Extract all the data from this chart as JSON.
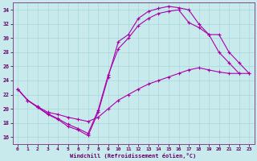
{
  "xlabel": "Windchill (Refroidissement éolien,°C)",
  "bg_color": "#c8eaec",
  "line_color": "#aa00aa",
  "grid_color": "#a8d8dc",
  "spine_color": "#884488",
  "tick_color": "#660066",
  "xlim": [
    -0.5,
    23.5
  ],
  "ylim": [
    15.0,
    35.0
  ],
  "yticks": [
    16,
    18,
    20,
    22,
    24,
    26,
    28,
    30,
    32,
    34
  ],
  "xticks": [
    0,
    1,
    2,
    3,
    4,
    5,
    6,
    7,
    8,
    9,
    10,
    11,
    12,
    13,
    14,
    15,
    16,
    17,
    18,
    19,
    20,
    21,
    22,
    23
  ],
  "curve1_x": [
    0,
    1,
    2,
    3,
    4,
    5,
    6,
    7,
    8,
    9,
    10,
    11,
    12,
    13,
    14,
    15,
    16,
    17,
    18,
    19,
    20,
    21,
    22
  ],
  "curve1_y": [
    22.8,
    21.2,
    20.2,
    19.2,
    18.5,
    17.5,
    17.0,
    16.2,
    19.5,
    24.5,
    29.5,
    30.5,
    32.8,
    33.8,
    34.2,
    34.5,
    34.3,
    34.0,
    32.0,
    30.5,
    28.0,
    26.5,
    25.0
  ],
  "curve2_x": [
    0,
    1,
    2,
    3,
    4,
    5,
    6,
    7,
    8,
    9,
    10,
    11,
    12,
    13,
    14,
    15,
    16,
    17,
    18,
    19,
    20,
    21,
    22,
    23
  ],
  "curve2_y": [
    22.8,
    21.2,
    20.3,
    19.5,
    19.2,
    18.8,
    18.5,
    18.2,
    18.8,
    20.0,
    21.2,
    22.0,
    22.8,
    23.5,
    24.0,
    24.5,
    25.0,
    25.5,
    25.8,
    25.5,
    25.2,
    25.0,
    25.0,
    25.0
  ],
  "curve3_x": [
    0,
    1,
    2,
    3,
    4,
    5,
    6,
    7,
    8,
    9,
    10,
    11,
    12,
    13,
    14,
    15,
    16,
    17,
    18,
    19,
    20,
    21,
    22,
    23
  ],
  "curve3_y": [
    22.8,
    21.2,
    20.2,
    19.3,
    18.6,
    17.8,
    17.2,
    16.5,
    19.8,
    24.8,
    28.5,
    30.0,
    31.8,
    32.8,
    33.5,
    33.8,
    34.0,
    32.2,
    31.5,
    30.5,
    30.5,
    28.0,
    26.5,
    25.0
  ]
}
